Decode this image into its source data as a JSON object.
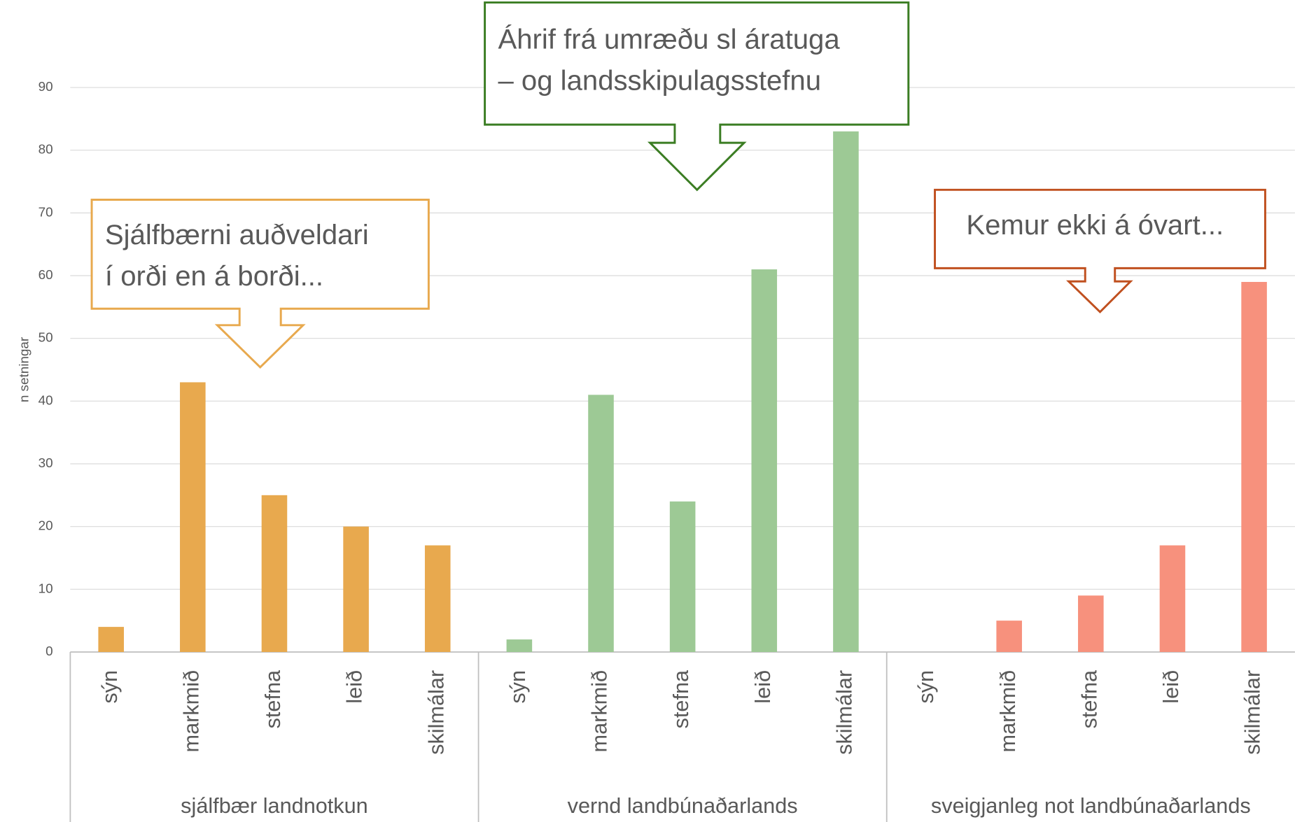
{
  "chart_data": {
    "type": "grouped-bar",
    "y_axis_label": "n setningar",
    "ylim": [
      0,
      90
    ],
    "yticks": [
      0,
      10,
      20,
      30,
      40,
      50,
      60,
      70,
      80,
      90
    ],
    "grid": true,
    "groups": [
      {
        "name": "sjálfbær landnotkun",
        "color": "#E8A94E",
        "categories": [
          "sýn",
          "markmið",
          "stefna",
          "leið",
          "skilmálar"
        ],
        "values": [
          4,
          43,
          25,
          20,
          17
        ]
      },
      {
        "name": "vernd landbúnaðarlands",
        "color": "#9DC995",
        "categories": [
          "sýn",
          "markmið",
          "stefna",
          "leið",
          "skilmálar"
        ],
        "values": [
          2,
          41,
          24,
          61,
          83
        ]
      },
      {
        "name": "sveigjanleg not landbúnaðarlands",
        "color": "#F7917D",
        "categories": [
          "sýn",
          "markmið",
          "stefna",
          "leið",
          "skilmálar"
        ],
        "values": [
          0,
          5,
          9,
          17,
          59
        ]
      }
    ],
    "annotations": [
      {
        "lines": [
          "Sjálfbærni auðveldari",
          "í orði en á borði..."
        ],
        "color": "#E8A94E"
      },
      {
        "lines": [
          "Áhrif frá umræðu sl áratuga",
          "– og landsskipulagsstefnu"
        ],
        "color": "#3B7D23"
      },
      {
        "lines": [
          "Kemur ekki á óvart..."
        ],
        "color": "#C0501F"
      }
    ]
  }
}
